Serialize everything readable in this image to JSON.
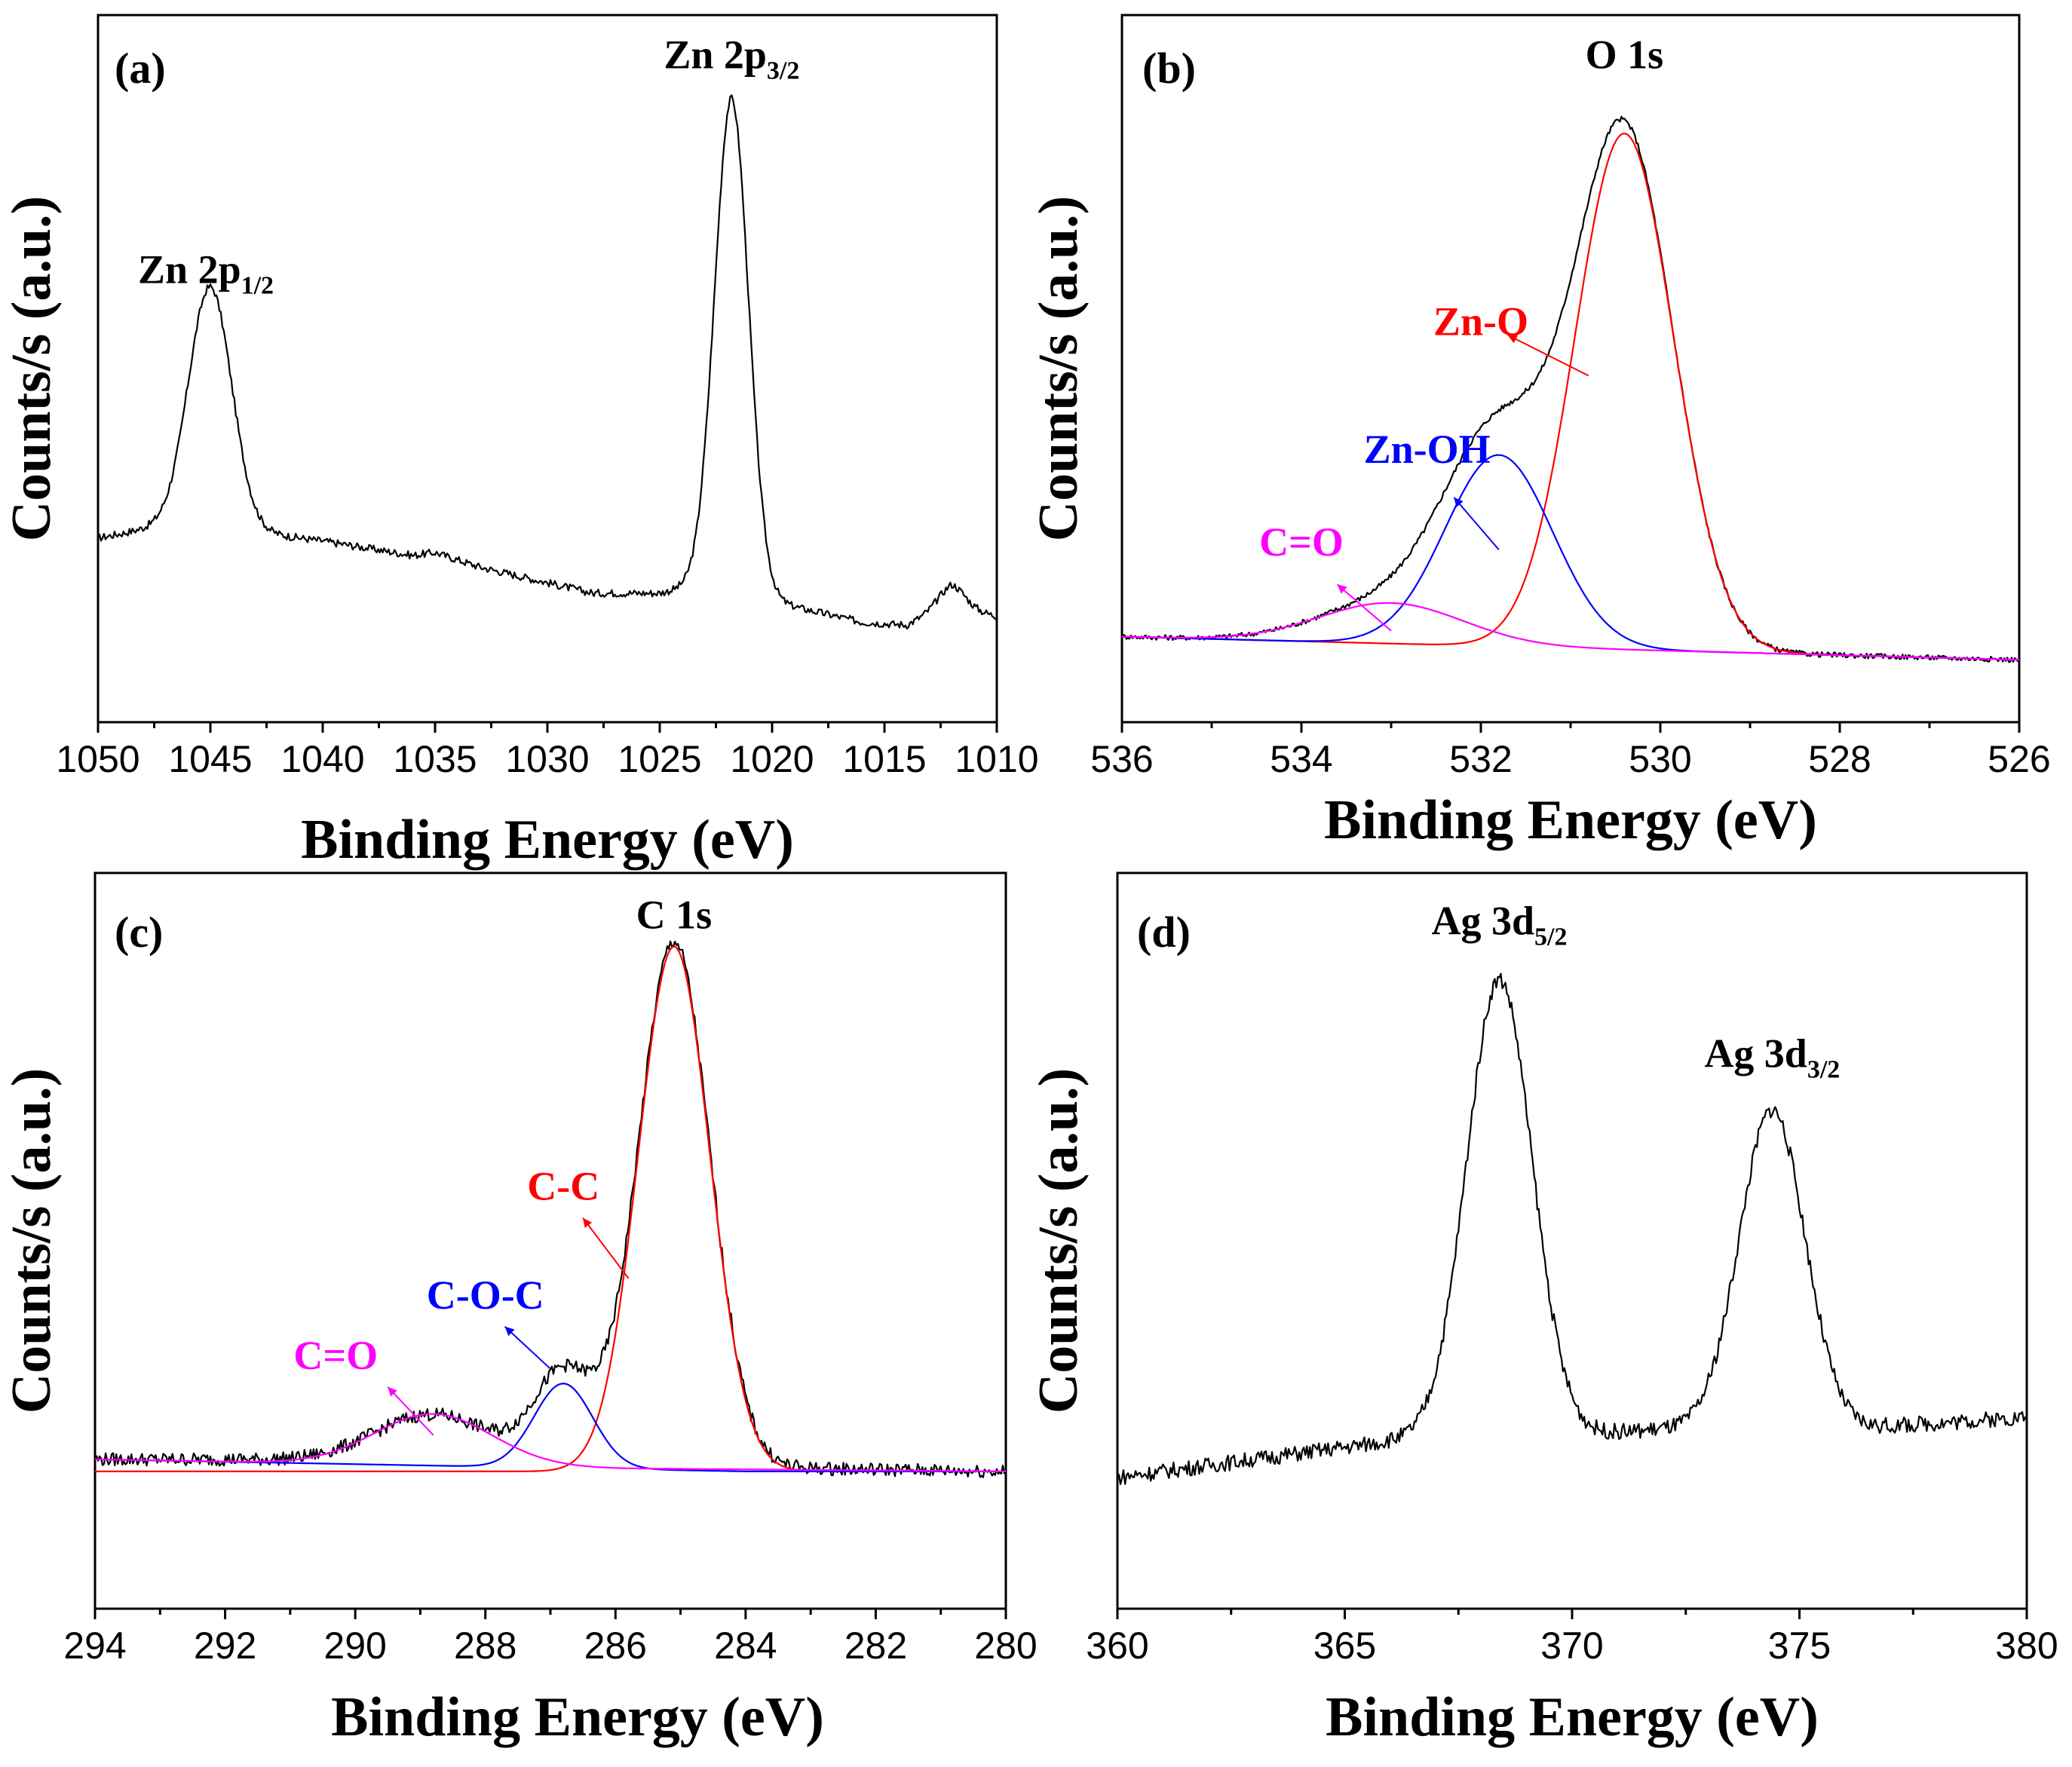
{
  "chart_data": [
    {
      "type": "line",
      "panel_label": "(a)",
      "xlabel": "Binding Energy (eV)",
      "ylabel": "Counts/s (a.u.)",
      "xlim": [
        1050,
        1010
      ],
      "ylim": [
        0,
        1
      ],
      "x_ticks": [
        "1050",
        "1045",
        "1040",
        "1035",
        "1030",
        "1025",
        "1020",
        "1015",
        "1010"
      ],
      "peak_labels": [
        {
          "main": "Zn 2p",
          "sub": "1/2",
          "x": 1045.2,
          "y": 0.66,
          "color": "#000000"
        },
        {
          "main": "Zn 2p",
          "sub": "3/2",
          "x": 1021.8,
          "y": 1.03,
          "color": "#000000"
        }
      ],
      "series": [
        {
          "name": "Zn 2p",
          "color": "#000000",
          "baseline": [
            [
              1050,
              0.22
            ],
            [
              1046,
              0.25
            ],
            [
              1043,
              0.23
            ],
            [
              1040,
              0.215
            ],
            [
              1036,
              0.19
            ],
            [
              1035,
              0.195
            ],
            [
              1033,
              0.17
            ],
            [
              1028,
              0.125
            ],
            [
              1025,
              0.125
            ],
            [
              1023,
              0.14
            ],
            [
              1020,
              0.11
            ],
            [
              1016,
              0.075
            ],
            [
              1014,
              0.07
            ],
            [
              1013,
              0.09
            ],
            [
              1012,
              0.11
            ],
            [
              1011,
              0.095
            ],
            [
              1010,
              0.085
            ]
          ],
          "peaks": [
            {
              "center": 1045.0,
              "height": 0.41,
              "width": 0.95
            },
            {
              "center": 1021.8,
              "height": 0.85,
              "width": 0.75
            },
            {
              "center": 1012.0,
              "height": 0.03,
              "width": 0.6
            }
          ],
          "noise": 0.003
        }
      ]
    },
    {
      "type": "line",
      "panel_label": "(b)",
      "xlabel": "Binding Energy (eV)",
      "ylabel": "Counts/s (a.u.)",
      "xlim": [
        536,
        526
      ],
      "ylim": [
        0,
        1
      ],
      "x_ticks": [
        "536",
        "534",
        "532",
        "530",
        "528",
        "526"
      ],
      "peak_labels": [
        {
          "main": "O 1s",
          "sub": "",
          "x": 530.4,
          "y": 1.03,
          "color": "#000000"
        },
        {
          "main": "Zn-O",
          "sub": "",
          "x": 532.0,
          "y": 0.57,
          "color": "#ff0000"
        },
        {
          "main": "Zn-OH",
          "sub": "",
          "x": 532.6,
          "y": 0.35,
          "color": "#0000ff"
        },
        {
          "main": "C=O",
          "sub": "",
          "x": 534.0,
          "y": 0.19,
          "color": "#ff00ff"
        }
      ],
      "annotation_arrows": [
        {
          "from": [
            530.8,
            0.5
          ],
          "to": [
            531.7,
            0.57
          ],
          "color": "#ff0000"
        },
        {
          "from": [
            531.8,
            0.2
          ],
          "to": [
            532.3,
            0.29
          ],
          "color": "#0000ff"
        },
        {
          "from": [
            533.0,
            0.06
          ],
          "to": [
            533.6,
            0.14
          ],
          "color": "#ff00ff"
        }
      ],
      "series": [
        {
          "name": "O 1s envelope",
          "color": "#000000",
          "baseline": [
            [
              536,
              0.05
            ],
            [
              526,
              0.01
            ]
          ],
          "peaks": [
            {
              "center": 530.4,
              "height": 0.89,
              "width": 0.55
            },
            {
              "center": 531.8,
              "height": 0.35,
              "width": 0.6
            },
            {
              "center": 533.0,
              "height": 0.07,
              "width": 0.8
            }
          ],
          "noise": 0.002
        },
        {
          "name": "Zn-O",
          "color": "#ff0000",
          "baseline": [
            [
              536,
              0.05
            ],
            [
              526,
              0.01
            ]
          ],
          "peaks": [
            {
              "center": 530.4,
              "height": 0.89,
              "width": 0.55
            }
          ],
          "noise": 0
        },
        {
          "name": "Zn-OH",
          "color": "#0000ff",
          "baseline": [
            [
              536,
              0.05
            ],
            [
              526,
              0.01
            ]
          ],
          "peaks": [
            {
              "center": 531.8,
              "height": 0.33,
              "width": 0.6
            }
          ],
          "noise": 0
        },
        {
          "name": "C=O",
          "color": "#ff00ff",
          "baseline": [
            [
              536,
              0.05
            ],
            [
              526,
              0.01
            ]
          ],
          "peaks": [
            {
              "center": 533.0,
              "height": 0.07,
              "width": 0.8
            }
          ],
          "noise": 0
        }
      ]
    },
    {
      "type": "line",
      "panel_label": "(c)",
      "xlabel": "Binding Energy (eV)",
      "ylabel": "Counts/s (a.u.)",
      "xlim": [
        294,
        280
      ],
      "ylim": [
        0,
        1
      ],
      "x_ticks": [
        "294",
        "292",
        "290",
        "288",
        "286",
        "284",
        "282",
        "280"
      ],
      "peak_labels": [
        {
          "main": "C 1s",
          "sub": "",
          "x": 285.1,
          "y": 1.03,
          "color": "#000000"
        },
        {
          "main": "C-C",
          "sub": "",
          "x": 286.8,
          "y": 0.58,
          "color": "#ff0000"
        },
        {
          "main": "C-O-C",
          "sub": "",
          "x": 288.0,
          "y": 0.4,
          "color": "#0000ff"
        },
        {
          "main": "C=O",
          "sub": "",
          "x": 290.3,
          "y": 0.3,
          "color": "#ff00ff"
        }
      ],
      "annotation_arrows": [
        {
          "from": [
            285.8,
            0.45
          ],
          "to": [
            286.5,
            0.55
          ],
          "color": "#ff0000"
        },
        {
          "from": [
            287.0,
            0.3
          ],
          "to": [
            287.7,
            0.37
          ],
          "color": "#0000ff"
        },
        {
          "from": [
            288.8,
            0.19
          ],
          "to": [
            289.5,
            0.27
          ],
          "color": "#ff00ff"
        }
      ],
      "series": [
        {
          "name": "C 1s envelope",
          "color": "#000000",
          "baseline": [
            [
              294,
              0.15
            ],
            [
              292,
              0.15
            ],
            [
              280,
              0.13
            ]
          ],
          "peaks": [
            {
              "center": 285.1,
              "height": 0.87,
              "width": 0.55
            },
            {
              "center": 286.8,
              "height": 0.15,
              "width": 0.45
            },
            {
              "center": 288.8,
              "height": 0.08,
              "width": 0.9
            }
          ],
          "noise": 0.005
        },
        {
          "name": "C-C",
          "color": "#ff0000",
          "baseline": [
            [
              294,
              0.13
            ],
            [
              280,
              0.13
            ]
          ],
          "peaks": [
            {
              "center": 285.1,
              "height": 0.87,
              "width": 0.55
            }
          ],
          "noise": 0
        },
        {
          "name": "C-O-C",
          "color": "#0000ff",
          "baseline": [
            [
              294,
              0.15
            ],
            [
              284,
              0.13
            ],
            [
              280,
              0.13
            ]
          ],
          "peaks": [
            {
              "center": 286.8,
              "height": 0.14,
              "width": 0.45
            }
          ],
          "noise": 0
        },
        {
          "name": "C=O",
          "color": "#ff00ff",
          "baseline": [
            [
              294,
              0.15
            ],
            [
              286,
              0.135
            ],
            [
              280,
              0.13
            ]
          ],
          "peaks": [
            {
              "center": 288.8,
              "height": 0.085,
              "width": 0.9
            }
          ],
          "noise": 0
        }
      ]
    },
    {
      "type": "line",
      "panel_label": "(d)",
      "xlabel": "Binding Energy (eV)",
      "ylabel": "Counts/s (a.u.)",
      "xlim": [
        360,
        380
      ],
      "ylim": [
        0,
        1
      ],
      "x_ticks": [
        "360",
        "365",
        "370",
        "375",
        "380"
      ],
      "peak_labels": [
        {
          "main": "Ag 3d",
          "sub": "5/2",
          "x": 368.4,
          "y": 1.02,
          "color": "#000000"
        },
        {
          "main": "Ag 3d",
          "sub": "3/2",
          "x": 374.4,
          "y": 0.8,
          "color": "#000000"
        }
      ],
      "series": [
        {
          "name": "Ag 3d",
          "color": "#000000",
          "baseline": [
            [
              360,
              0.12
            ],
            [
              366,
              0.18
            ],
            [
              370,
              0.19
            ],
            [
              372,
              0.2
            ],
            [
              376,
              0.2
            ],
            [
              380,
              0.22
            ]
          ],
          "peaks": [
            {
              "center": 368.4,
              "height": 0.76,
              "width": 0.72
            },
            {
              "center": 374.4,
              "height": 0.53,
              "width": 0.72
            }
          ],
          "noise": 0.006
        }
      ]
    }
  ]
}
